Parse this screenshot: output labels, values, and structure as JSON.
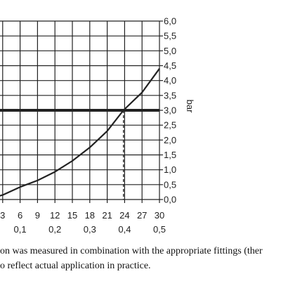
{
  "chart_data": {
    "type": "line",
    "x_primary_ticks": [
      "3",
      "6",
      "9",
      "12",
      "15",
      "18",
      "21",
      "24",
      "27",
      "30"
    ],
    "x_primary_values": [
      3,
      6,
      9,
      12,
      15,
      18,
      21,
      24,
      27,
      30
    ],
    "x_secondary_ticks": [
      "0,1",
      "0,2",
      "0,3",
      "0,4",
      "0,5"
    ],
    "x_secondary_values": [
      6,
      12,
      18,
      24,
      30
    ],
    "y_ticks": [
      "0,0",
      "0,5",
      "1,0",
      "1,5",
      "2,0",
      "2,5",
      "3,0",
      "3,5",
      "4,0",
      "4,5",
      "5,0",
      "5,5",
      "6,0"
    ],
    "y_tick_values": [
      0,
      0.5,
      1,
      1.5,
      2,
      2.5,
      3,
      3.5,
      4,
      4.5,
      5,
      5.5,
      6
    ],
    "ylabel": "bar",
    "ylim": [
      0,
      6
    ],
    "grid": true,
    "series": [
      {
        "x": [
          0,
          3,
          6,
          9,
          12,
          15,
          18,
          21,
          23.8,
          27,
          30
        ],
        "y": [
          0.0,
          0.15,
          0.42,
          0.64,
          0.93,
          1.3,
          1.75,
          2.3,
          3.0,
          3.6,
          4.4
        ]
      }
    ],
    "reference_line": {
      "y": 3.0
    },
    "marker_line": {
      "x": 23.8
    }
  },
  "caption": {
    "line1": "on was measured in combination with the appropriate fittings (ther",
    "line2": "o reflect actual application in practice."
  }
}
